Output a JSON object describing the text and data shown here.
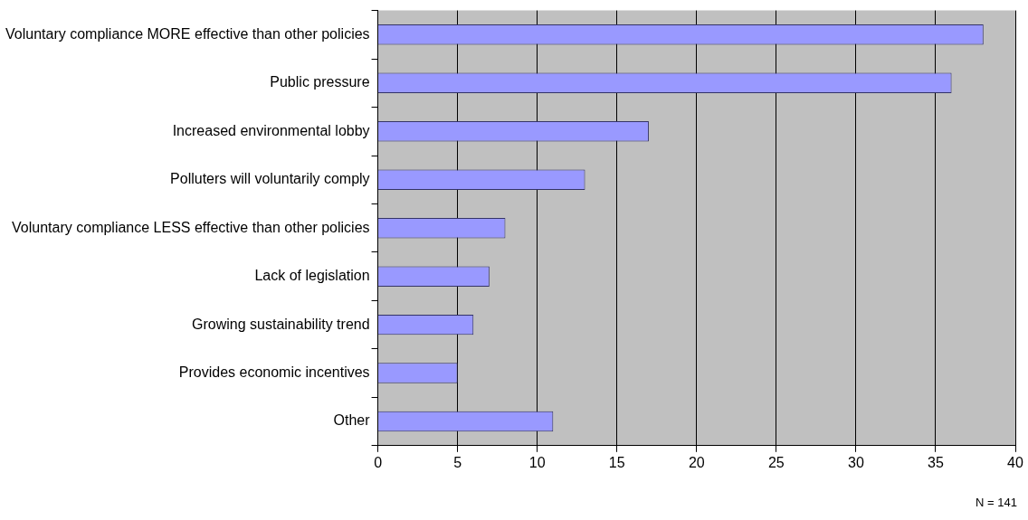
{
  "chart_data": {
    "type": "bar",
    "orientation": "horizontal",
    "categories": [
      "Voluntary compliance MORE effective than other policies",
      "Public pressure",
      "Increased environmental lobby",
      "Polluters will voluntarily comply",
      "Voluntary compliance LESS effective than other policies",
      "Lack of legislation",
      "Growing sustainability trend",
      "Provides economic incentives",
      "Other"
    ],
    "values": [
      38,
      36,
      17,
      13,
      8,
      7,
      6,
      5,
      11
    ],
    "color": "#9999ff",
    "xlim": [
      0,
      40
    ],
    "xticks": [
      0,
      5,
      10,
      15,
      20,
      25,
      30,
      35,
      40
    ],
    "grid": "x",
    "legend": false,
    "annotations": [
      "N = 141"
    ]
  }
}
